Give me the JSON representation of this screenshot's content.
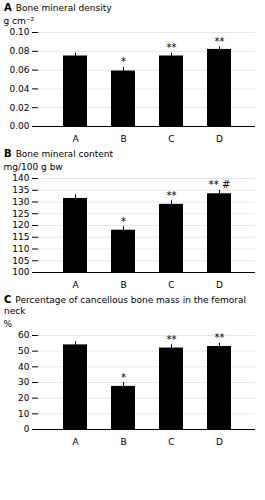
{
  "chart_data": [
    {
      "type": "bar",
      "panel_label": "A",
      "title": "Bone mineral density",
      "ylabel": "g cm⁻²",
      "categories": [
        "A",
        "B",
        "C",
        "D"
      ],
      "values": [
        0.075,
        0.059,
        0.075,
        0.082
      ],
      "errors": [
        0.003,
        0.004,
        0.003,
        0.003
      ],
      "annotations": [
        null,
        "*",
        "**",
        "**"
      ],
      "ylim": [
        0,
        0.1
      ],
      "yticks": [
        {
          "value": 0,
          "label": "0.00"
        },
        {
          "value": 0.02,
          "label": "0.02"
        },
        {
          "value": 0.04,
          "label": "0.04"
        },
        {
          "value": 0.06,
          "label": "0.06"
        },
        {
          "value": 0.08,
          "label": "0.08"
        },
        {
          "value": 0.1,
          "label": "0.10"
        }
      ],
      "grid": true
    },
    {
      "type": "bar",
      "panel_label": "B",
      "title": "Bone mineral content",
      "ylabel": "mg/100 g bw",
      "categories": [
        "A",
        "B",
        "C",
        "D"
      ],
      "values": [
        131.5,
        118.0,
        129.0,
        133.5
      ],
      "errors": [
        1.5,
        1.5,
        1.5,
        1.5
      ],
      "annotations": [
        null,
        "*",
        "**",
        "** #"
      ],
      "ylim": [
        100,
        140
      ],
      "yticks": [
        100,
        105,
        110,
        115,
        120,
        125,
        130,
        135,
        140
      ],
      "grid": true
    },
    {
      "type": "bar",
      "panel_label": "C",
      "title": "Percentage of cancellous bone mass in the femoral neck",
      "ylabel": "%",
      "categories": [
        "A",
        "B",
        "C",
        "D"
      ],
      "values": [
        54.0,
        27.5,
        52.0,
        53.0
      ],
      "errors": [
        2.0,
        2.5,
        2.0,
        2.0
      ],
      "annotations": [
        null,
        "*",
        "**",
        "**"
      ],
      "ylim": [
        0,
        60
      ],
      "yticks": [
        0,
        10,
        20,
        30,
        40,
        50,
        60
      ],
      "grid": true
    }
  ]
}
